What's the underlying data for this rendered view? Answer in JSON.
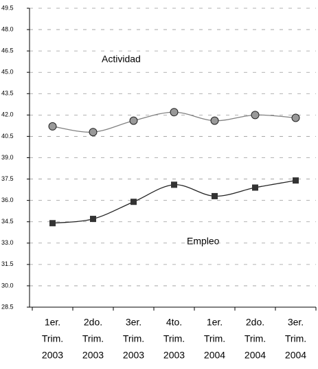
{
  "chart_data": {
    "type": "line",
    "categories": [
      [
        "1er.",
        "Trim.",
        "2003"
      ],
      [
        "2do.",
        "Trim.",
        "2003"
      ],
      [
        "3er.",
        "Trim.",
        "2003"
      ],
      [
        "4to.",
        "Trim.",
        "2003"
      ],
      [
        "1er.",
        "Trim.",
        "2004"
      ],
      [
        "2do.",
        "Trim.",
        "2004"
      ],
      [
        "3er.",
        "Trim.",
        "2004"
      ]
    ],
    "series": [
      {
        "name": "Actividad",
        "color": "#808080",
        "marker": "circle",
        "marker_color": "#999999",
        "values": [
          41.2,
          40.8,
          41.6,
          42.2,
          41.6,
          42.0,
          41.8
        ]
      },
      {
        "name": "Empleo",
        "color": "#222222",
        "marker": "square",
        "marker_color": "#333333",
        "values": [
          34.4,
          34.7,
          35.9,
          37.1,
          36.3,
          36.9,
          37.4
        ]
      }
    ],
    "ylim": [
      28.5,
      49.5
    ],
    "yticks": [
      28.5,
      {
        "value": 30,
        "label": "30.0"
      },
      31.5,
      {
        "value": 33,
        "label": "33.0"
      },
      34.5,
      {
        "value": 36,
        "label": "36.0"
      },
      37.5,
      {
        "value": 39,
        "label": "39.0"
      },
      40.5,
      {
        "value": 42,
        "label": "42.0"
      },
      43.5,
      {
        "value": 45,
        "label": "45.0"
      },
      46.5,
      {
        "value": 48,
        "label": "48.0"
      },
      49.5
    ],
    "grid": true,
    "smooth": true
  }
}
